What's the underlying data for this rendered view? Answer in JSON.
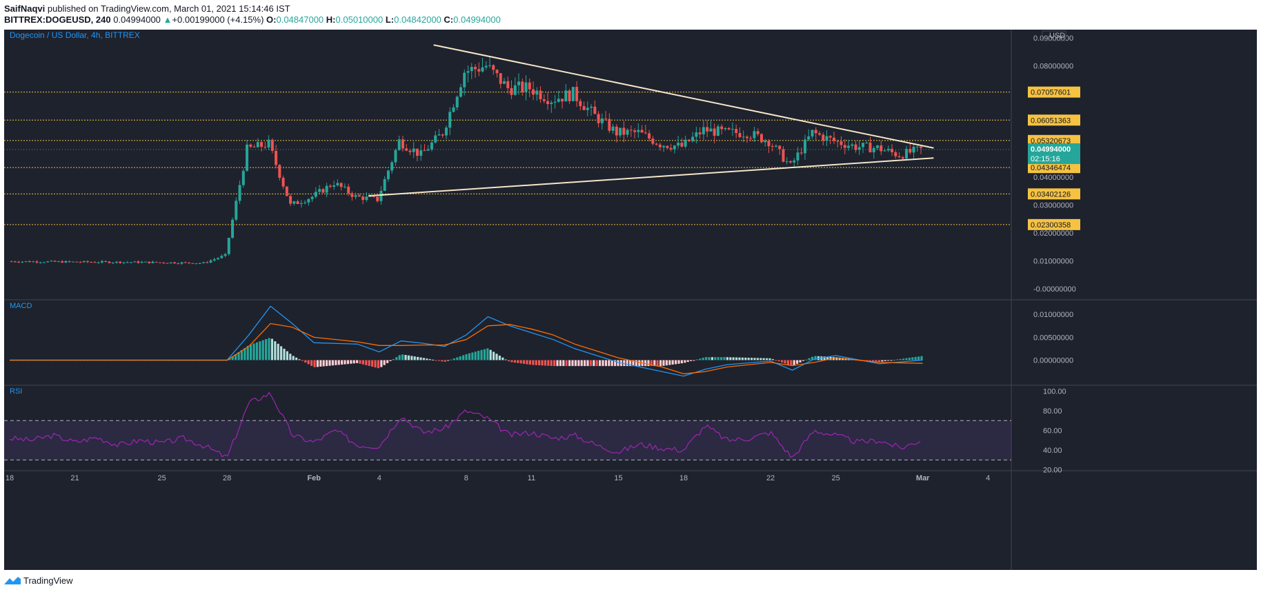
{
  "header": {
    "author": "SaifNaqvi",
    "published": " published on TradingView.com, March 01, 2021 15:14:46 IST",
    "symbol": "BITTREX:DOGEUSD, 240",
    "last": "0.04994000",
    "change_arrow": "▲",
    "change": "+0.00199000 (+4.15%)",
    "o_label": "O:",
    "o": "0.04847000",
    "h_label": "H:",
    "h": "0.05010000",
    "l_label": "L:",
    "l": "0.04842000",
    "c_label": "C:",
    "c": "0.04994000"
  },
  "colors": {
    "background": "#1e222d",
    "grid": "#2a2e39",
    "up": "#26a69a",
    "down": "#ef5350",
    "label_badge": "#f5c242",
    "price_line": "#26a69a",
    "trendline": "#f5e6c8",
    "macd": "#2196f3",
    "signal": "#ff6d00",
    "rsi": "#9c27b0",
    "axis_text": "#b2b5be",
    "legend_text": "#2196f3"
  },
  "chart_data": [
    {
      "type": "candlestick",
      "title": "Dogecoin / US Dollar, 4h, BITTREX",
      "currency": "USD",
      "ylim": [
        -0.004,
        0.093
      ],
      "ytick_labels": [
        "0.09000000",
        "0.08000000",
        "0.07000000",
        "0.06000000",
        "0.05000000",
        "0.04000000",
        "0.03000000",
        "0.02000000",
        "0.01000000",
        "-0.00000000"
      ],
      "yticks": [
        0.09,
        0.08,
        0.07,
        0.06,
        0.05,
        0.04,
        0.03,
        0.02,
        0.01,
        0.0
      ],
      "xtick_labels": [
        "18",
        "21",
        "25",
        "28",
        "Feb",
        "4",
        "8",
        "11",
        "15",
        "18",
        "22",
        "25",
        "Mar",
        "4"
      ],
      "xticks_day_offset": [
        0,
        3,
        7,
        10,
        14,
        17,
        21,
        24,
        28,
        31,
        35,
        38,
        42,
        45
      ],
      "start_date": "2021-01-18",
      "horizontal_levels": [
        "0.07057601",
        "0.06051363",
        "0.05320673",
        "0.04346474",
        "0.03402126",
        "0.02300358"
      ],
      "horizontal_level_values": [
        0.07057601,
        0.06051363,
        0.05320673,
        0.04346474,
        0.03402126,
        0.02300358
      ],
      "current_price_label": "0.04994000",
      "countdown": "02:15:16",
      "current_price": 0.04994,
      "trendline_upper": {
        "from": [
          "2021-02-06 12:00",
          0.0875
        ],
        "to": [
          "2021-03-01 12:00",
          0.0505
        ]
      },
      "trendline_lower": {
        "from": [
          "2021-02-03 12:00",
          0.0333
        ],
        "to": [
          "2021-03-01 12:00",
          0.0469
        ]
      },
      "daily_closes": [
        {
          "date": "2021-01-18",
          "close": 0.0098
        },
        {
          "date": "2021-01-21",
          "close": 0.0096
        },
        {
          "date": "2021-01-24",
          "close": 0.0095
        },
        {
          "date": "2021-01-27",
          "close": 0.0092
        },
        {
          "date": "2021-01-28",
          "close": 0.012
        },
        {
          "date": "2021-01-29",
          "close": 0.05
        },
        {
          "date": "2021-01-30",
          "close": 0.052
        },
        {
          "date": "2021-01-31",
          "close": 0.03
        },
        {
          "date": "2021-02-01",
          "close": 0.033
        },
        {
          "date": "2021-02-02",
          "close": 0.038
        },
        {
          "date": "2021-02-03",
          "close": 0.033
        },
        {
          "date": "2021-02-04",
          "close": 0.032
        },
        {
          "date": "2021-02-05",
          "close": 0.053
        },
        {
          "date": "2021-02-06",
          "close": 0.048
        },
        {
          "date": "2021-02-07",
          "close": 0.056
        },
        {
          "date": "2021-02-08",
          "close": 0.078
        },
        {
          "date": "2021-02-09",
          "close": 0.08
        },
        {
          "date": "2021-02-10",
          "close": 0.072
        },
        {
          "date": "2021-02-11",
          "close": 0.072
        },
        {
          "date": "2021-02-12",
          "close": 0.068
        },
        {
          "date": "2021-02-13",
          "close": 0.07
        },
        {
          "date": "2021-02-14",
          "close": 0.062
        },
        {
          "date": "2021-02-15",
          "close": 0.056
        },
        {
          "date": "2021-02-16",
          "close": 0.056
        },
        {
          "date": "2021-02-17",
          "close": 0.052
        },
        {
          "date": "2021-02-18",
          "close": 0.051
        },
        {
          "date": "2021-02-19",
          "close": 0.057
        },
        {
          "date": "2021-02-20",
          "close": 0.056
        },
        {
          "date": "2021-02-21",
          "close": 0.056
        },
        {
          "date": "2021-02-22",
          "close": 0.053
        },
        {
          "date": "2021-02-23",
          "close": 0.044
        },
        {
          "date": "2021-02-24",
          "close": 0.056
        },
        {
          "date": "2021-02-25",
          "close": 0.053
        },
        {
          "date": "2021-02-26",
          "close": 0.051
        },
        {
          "date": "2021-02-27",
          "close": 0.0505
        },
        {
          "date": "2021-02-28",
          "close": 0.048
        },
        {
          "date": "2021-03-01",
          "close": 0.0499
        }
      ]
    },
    {
      "type": "line",
      "title": "MACD",
      "ylim": [
        -0.0055,
        0.0132
      ],
      "ytick_labels": [
        "0.01000000",
        "0.00500000",
        "0.00000000"
      ],
      "yticks": [
        0.01,
        0.005,
        0.0
      ],
      "series": [
        {
          "name": "MACD",
          "points": [
            [
              "2021-01-18",
              0.0
            ],
            [
              "2021-01-28",
              0.0
            ],
            [
              "2021-01-29",
              0.0055
            ],
            [
              "2021-01-30",
              0.0118
            ],
            [
              "2021-01-31",
              0.008
            ],
            [
              "2021-02-01",
              0.0038
            ],
            [
              "2021-02-03",
              0.0035
            ],
            [
              "2021-02-04",
              0.0018
            ],
            [
              "2021-02-05",
              0.0042
            ],
            [
              "2021-02-06",
              0.0037
            ],
            [
              "2021-02-07",
              0.003
            ],
            [
              "2021-02-08",
              0.0055
            ],
            [
              "2021-02-09",
              0.0095
            ],
            [
              "2021-02-10",
              0.0075
            ],
            [
              "2021-02-11",
              0.006
            ],
            [
              "2021-02-12",
              0.0045
            ],
            [
              "2021-02-13",
              0.0025
            ],
            [
              "2021-02-15",
              -0.0005
            ],
            [
              "2021-02-17",
              -0.0025
            ],
            [
              "2021-02-18",
              -0.0035
            ],
            [
              "2021-02-19",
              -0.002
            ],
            [
              "2021-02-20",
              -0.001
            ],
            [
              "2021-02-22",
              -0.0002
            ],
            [
              "2021-02-23",
              -0.0022
            ],
            [
              "2021-02-24",
              0.0002
            ],
            [
              "2021-02-25",
              0.001
            ],
            [
              "2021-02-27",
              -0.0008
            ],
            [
              "2021-03-01",
              0.0
            ]
          ]
        },
        {
          "name": "Signal",
          "points": [
            [
              "2021-01-18",
              0.0
            ],
            [
              "2021-01-28",
              0.0
            ],
            [
              "2021-01-29",
              0.003
            ],
            [
              "2021-01-30",
              0.008
            ],
            [
              "2021-01-31",
              0.0072
            ],
            [
              "2021-02-01",
              0.005
            ],
            [
              "2021-02-03",
              0.004
            ],
            [
              "2021-02-04",
              0.0032
            ],
            [
              "2021-02-05",
              0.0032
            ],
            [
              "2021-02-06",
              0.0033
            ],
            [
              "2021-02-07",
              0.0033
            ],
            [
              "2021-02-08",
              0.0045
            ],
            [
              "2021-02-09",
              0.0075
            ],
            [
              "2021-02-10",
              0.0078
            ],
            [
              "2021-02-11",
              0.0068
            ],
            [
              "2021-02-12",
              0.0055
            ],
            [
              "2021-02-13",
              0.0035
            ],
            [
              "2021-02-15",
              0.0005
            ],
            [
              "2021-02-17",
              -0.0015
            ],
            [
              "2021-02-18",
              -0.003
            ],
            [
              "2021-02-19",
              -0.0025
            ],
            [
              "2021-02-20",
              -0.0015
            ],
            [
              "2021-02-22",
              -0.0005
            ],
            [
              "2021-02-23",
              -0.0012
            ],
            [
              "2021-02-24",
              -0.0005
            ],
            [
              "2021-02-25",
              0.0005
            ],
            [
              "2021-02-27",
              -0.0005
            ],
            [
              "2021-03-01",
              -0.0007
            ]
          ]
        }
      ]
    },
    {
      "type": "line",
      "title": "RSI",
      "ylim": [
        19,
        106
      ],
      "ytick_labels": [
        "100.00",
        "80.00",
        "60.00",
        "40.00",
        "20.00"
      ],
      "yticks": [
        100,
        80,
        60,
        40,
        20
      ],
      "band": [
        30,
        70
      ],
      "series": [
        {
          "name": "RSI",
          "points": [
            [
              "2021-01-18",
              52
            ],
            [
              "2021-01-19",
              50
            ],
            [
              "2021-01-20",
              55
            ],
            [
              "2021-01-21",
              48
            ],
            [
              "2021-01-22",
              53
            ],
            [
              "2021-01-23",
              45
            ],
            [
              "2021-01-24",
              50
            ],
            [
              "2021-01-25",
              47
            ],
            [
              "2021-01-26",
              52
            ],
            [
              "2021-01-27",
              44
            ],
            [
              "2021-01-28",
              32
            ],
            [
              "2021-01-29",
              88
            ],
            [
              "2021-01-30",
              98
            ],
            [
              "2021-01-31",
              55
            ],
            [
              "2021-02-01",
              48
            ],
            [
              "2021-02-02",
              60
            ],
            [
              "2021-02-03",
              45
            ],
            [
              "2021-02-04",
              44
            ],
            [
              "2021-02-05",
              75
            ],
            [
              "2021-02-06",
              58
            ],
            [
              "2021-02-07",
              62
            ],
            [
              "2021-02-08",
              80
            ],
            [
              "2021-02-09",
              72
            ],
            [
              "2021-02-10",
              55
            ],
            [
              "2021-02-11",
              58
            ],
            [
              "2021-02-12",
              52
            ],
            [
              "2021-02-13",
              55
            ],
            [
              "2021-02-14",
              45
            ],
            [
              "2021-02-15",
              38
            ],
            [
              "2021-02-16",
              46
            ],
            [
              "2021-02-17",
              42
            ],
            [
              "2021-02-18",
              40
            ],
            [
              "2021-02-19",
              65
            ],
            [
              "2021-02-20",
              50
            ],
            [
              "2021-02-21",
              52
            ],
            [
              "2021-02-22",
              58
            ],
            [
              "2021-02-23",
              32
            ],
            [
              "2021-02-24",
              60
            ],
            [
              "2021-02-25",
              55
            ],
            [
              "2021-02-26",
              48
            ],
            [
              "2021-02-27",
              50
            ],
            [
              "2021-02-28",
              42
            ],
            [
              "2021-03-01",
              51
            ]
          ]
        }
      ]
    }
  ],
  "footer": {
    "brand": "TradingView"
  }
}
